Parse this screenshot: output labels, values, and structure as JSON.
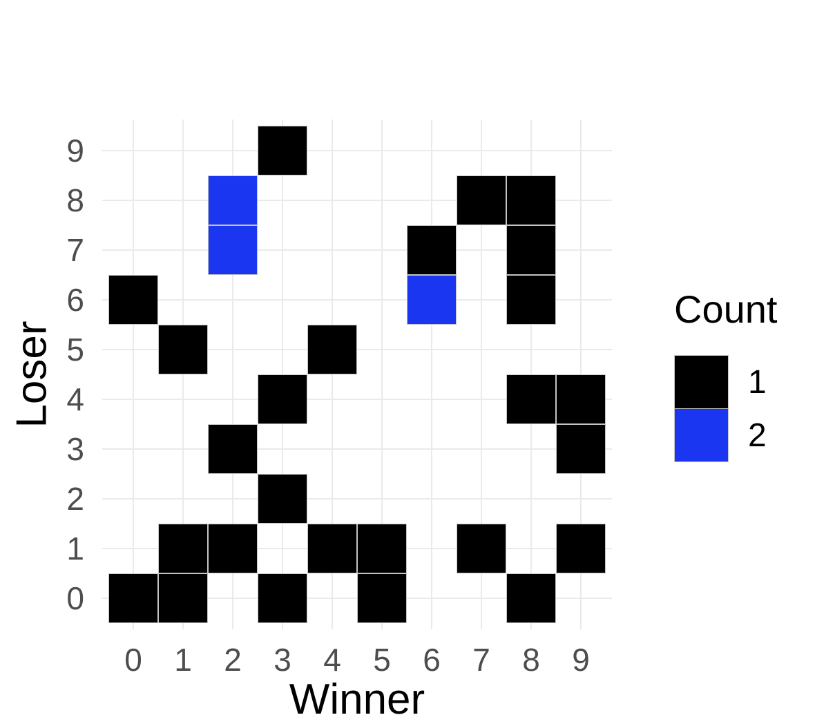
{
  "chart_data": {
    "type": "heatmap",
    "xlabel": "Winner",
    "ylabel": "Loser",
    "x_ticks": [
      "0",
      "1",
      "2",
      "3",
      "4",
      "5",
      "6",
      "7",
      "8",
      "9"
    ],
    "y_ticks": [
      "0",
      "1",
      "2",
      "3",
      "4",
      "5",
      "6",
      "7",
      "8",
      "9"
    ],
    "x_range": [
      0,
      9
    ],
    "y_range": [
      0,
      9
    ],
    "grid": true,
    "gridline_color": "#eaeaea",
    "axis_text_color": "#4d4d4d",
    "tile_border_color": "#c4c4c4",
    "count_colors": {
      "1": "#000000",
      "2": "#1b36f0"
    },
    "legend": {
      "title": "Count",
      "position": "right",
      "entries": [
        {
          "label": "1",
          "color": "#000000"
        },
        {
          "label": "2",
          "color": "#1b36f0"
        }
      ]
    },
    "tiles": [
      {
        "winner": 0,
        "loser": 0,
        "count": 1
      },
      {
        "winner": 1,
        "loser": 0,
        "count": 1
      },
      {
        "winner": 3,
        "loser": 0,
        "count": 1
      },
      {
        "winner": 5,
        "loser": 0,
        "count": 1
      },
      {
        "winner": 8,
        "loser": 0,
        "count": 1
      },
      {
        "winner": 1,
        "loser": 1,
        "count": 1
      },
      {
        "winner": 2,
        "loser": 1,
        "count": 1
      },
      {
        "winner": 4,
        "loser": 1,
        "count": 1
      },
      {
        "winner": 5,
        "loser": 1,
        "count": 1
      },
      {
        "winner": 7,
        "loser": 1,
        "count": 1
      },
      {
        "winner": 9,
        "loser": 1,
        "count": 1
      },
      {
        "winner": 3,
        "loser": 2,
        "count": 1
      },
      {
        "winner": 2,
        "loser": 3,
        "count": 1
      },
      {
        "winner": 9,
        "loser": 3,
        "count": 1
      },
      {
        "winner": 3,
        "loser": 4,
        "count": 1
      },
      {
        "winner": 8,
        "loser": 4,
        "count": 1
      },
      {
        "winner": 9,
        "loser": 4,
        "count": 1
      },
      {
        "winner": 1,
        "loser": 5,
        "count": 1
      },
      {
        "winner": 4,
        "loser": 5,
        "count": 1
      },
      {
        "winner": 0,
        "loser": 6,
        "count": 1
      },
      {
        "winner": 6,
        "loser": 6,
        "count": 2
      },
      {
        "winner": 8,
        "loser": 6,
        "count": 1
      },
      {
        "winner": 2,
        "loser": 7,
        "count": 2
      },
      {
        "winner": 6,
        "loser": 7,
        "count": 1
      },
      {
        "winner": 8,
        "loser": 7,
        "count": 1
      },
      {
        "winner": 2,
        "loser": 8,
        "count": 2
      },
      {
        "winner": 7,
        "loser": 8,
        "count": 1
      },
      {
        "winner": 8,
        "loser": 8,
        "count": 1
      },
      {
        "winner": 3,
        "loser": 9,
        "count": 1
      }
    ]
  }
}
